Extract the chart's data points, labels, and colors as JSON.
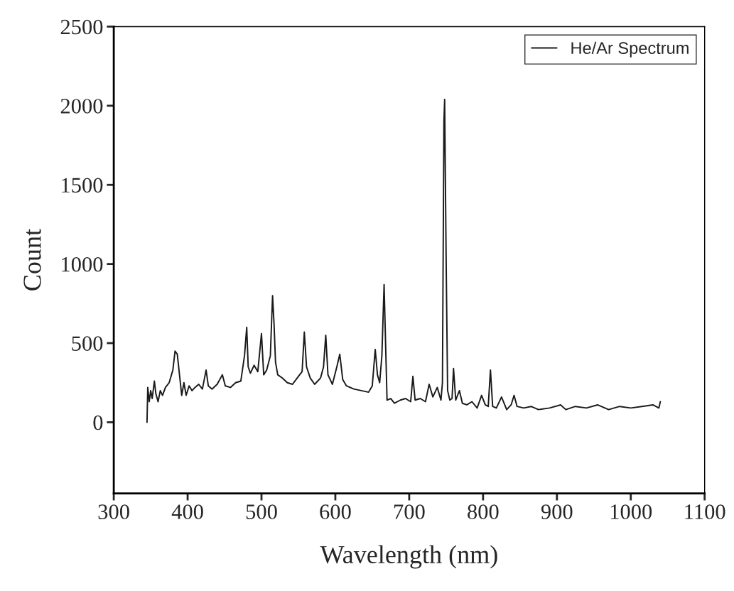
{
  "chart_data": {
    "type": "line",
    "xlabel": "Wavelength (nm)",
    "ylabel": "Count",
    "xlim": [
      300,
      1100
    ],
    "xticks": [
      300,
      400,
      500,
      600,
      700,
      800,
      900,
      1000,
      1100
    ],
    "ylim": [
      -450,
      2500
    ],
    "yticks": [
      0,
      500,
      1000,
      1500,
      2000,
      2500
    ],
    "grid": false,
    "legend": "top right",
    "marker": "none",
    "line_style": "solid",
    "series": [
      {
        "name": "He/Ar Spectrum",
        "color": "#1a1a1a",
        "x": [
          345,
          346,
          348,
          350,
          352,
          355,
          357,
          360,
          363,
          366,
          370,
          375,
          380,
          383,
          386,
          389,
          392,
          395,
          398,
          402,
          406,
          410,
          415,
          420,
          425,
          428,
          433,
          440,
          447,
          451,
          458,
          465,
          472,
          477,
          480,
          482,
          485,
          490,
          495,
          500,
          503,
          507,
          512,
          515,
          517,
          519,
          522,
          528,
          535,
          542,
          550,
          555,
          558,
          561,
          566,
          572,
          580,
          584,
          587,
          590,
          596,
          602,
          606,
          610,
          615,
          625,
          635,
          645,
          650,
          654,
          657,
          660,
          663,
          666,
          668,
          670,
          675,
          680,
          688,
          695,
          702,
          705,
          708,
          715,
          722,
          727,
          732,
          738,
          743,
          745,
          747,
          748,
          750,
          752,
          755,
          758,
          760,
          763,
          768,
          772,
          778,
          785,
          792,
          798,
          803,
          807,
          810,
          813,
          818,
          825,
          832,
          838,
          842,
          846,
          855,
          865,
          875,
          890,
          905,
          912,
          925,
          940,
          955,
          970,
          985,
          1000,
          1015,
          1030,
          1038,
          1040
        ],
        "values": [
          0,
          220,
          130,
          200,
          150,
          260,
          180,
          130,
          200,
          170,
          220,
          250,
          330,
          450,
          430,
          300,
          170,
          250,
          170,
          230,
          200,
          220,
          240,
          210,
          330,
          230,
          210,
          240,
          300,
          230,
          220,
          250,
          260,
          420,
          600,
          350,
          310,
          360,
          320,
          560,
          300,
          330,
          420,
          800,
          620,
          380,
          300,
          280,
          250,
          240,
          290,
          320,
          570,
          350,
          280,
          240,
          280,
          350,
          550,
          300,
          240,
          350,
          430,
          270,
          230,
          210,
          200,
          190,
          230,
          460,
          300,
          250,
          420,
          870,
          500,
          140,
          150,
          120,
          140,
          150,
          130,
          290,
          140,
          150,
          130,
          240,
          160,
          220,
          140,
          250,
          1900,
          2040,
          1030,
          200,
          140,
          150,
          340,
          140,
          200,
          120,
          110,
          130,
          90,
          170,
          110,
          100,
          330,
          100,
          90,
          160,
          80,
          110,
          170,
          100,
          90,
          100,
          80,
          90,
          110,
          80,
          100,
          90,
          110,
          80,
          100,
          90,
          100,
          110,
          90,
          130
        ]
      }
    ]
  }
}
